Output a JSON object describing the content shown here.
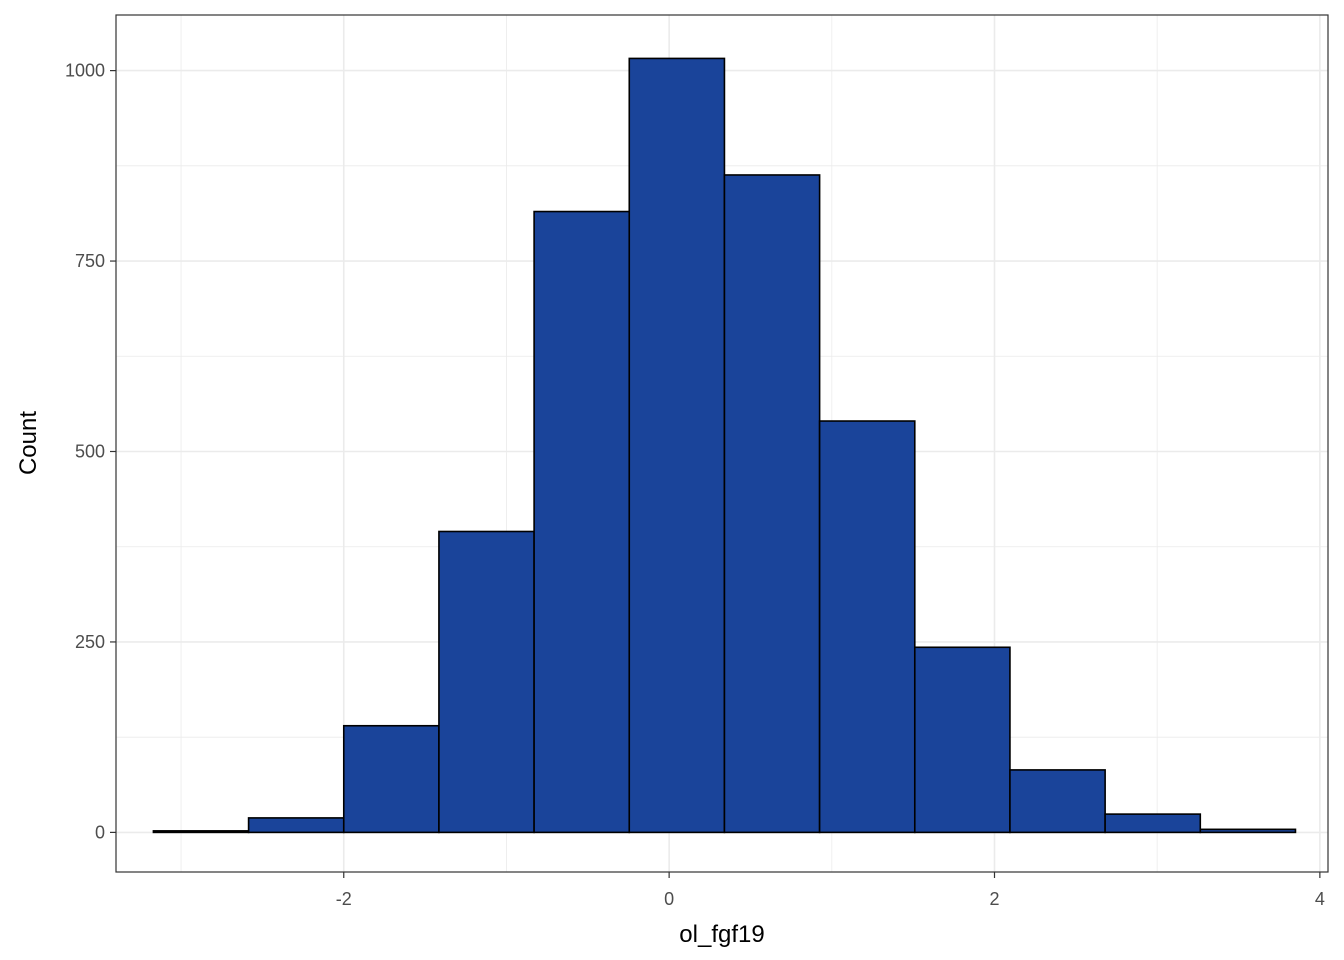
{
  "chart_data": {
    "type": "bar",
    "subtype": "histogram",
    "title": "",
    "xlabel": "ol_fgf19",
    "ylabel": "Count",
    "xlim": [
      -3.4,
      4.05
    ],
    "ylim": [
      -52,
      1073
    ],
    "xticks": [
      -2,
      0,
      2,
      4
    ],
    "xtick_labels": [
      "-2",
      "0",
      "2",
      "4"
    ],
    "yticks": [
      0,
      250,
      500,
      750,
      1000
    ],
    "ytick_labels": [
      "0",
      "250",
      "500",
      "750",
      "1000"
    ],
    "grid": true,
    "legend": "none",
    "bin_edges": [
      -3.17,
      -2.585,
      -2.0,
      -1.415,
      -0.83,
      -0.245,
      0.34,
      0.925,
      1.51,
      2.095,
      2.68,
      3.265,
      3.85
    ],
    "counts": [
      2,
      19,
      140,
      395,
      815,
      1016,
      863,
      540,
      243,
      82,
      24,
      4
    ]
  },
  "colors": {
    "bar_fill": "#1a449a",
    "bar_stroke": "#000000",
    "grid": "#ebebeb",
    "panel_border": "#333333",
    "tick_text": "#4d4d4d",
    "axis_title": "#000000"
  }
}
